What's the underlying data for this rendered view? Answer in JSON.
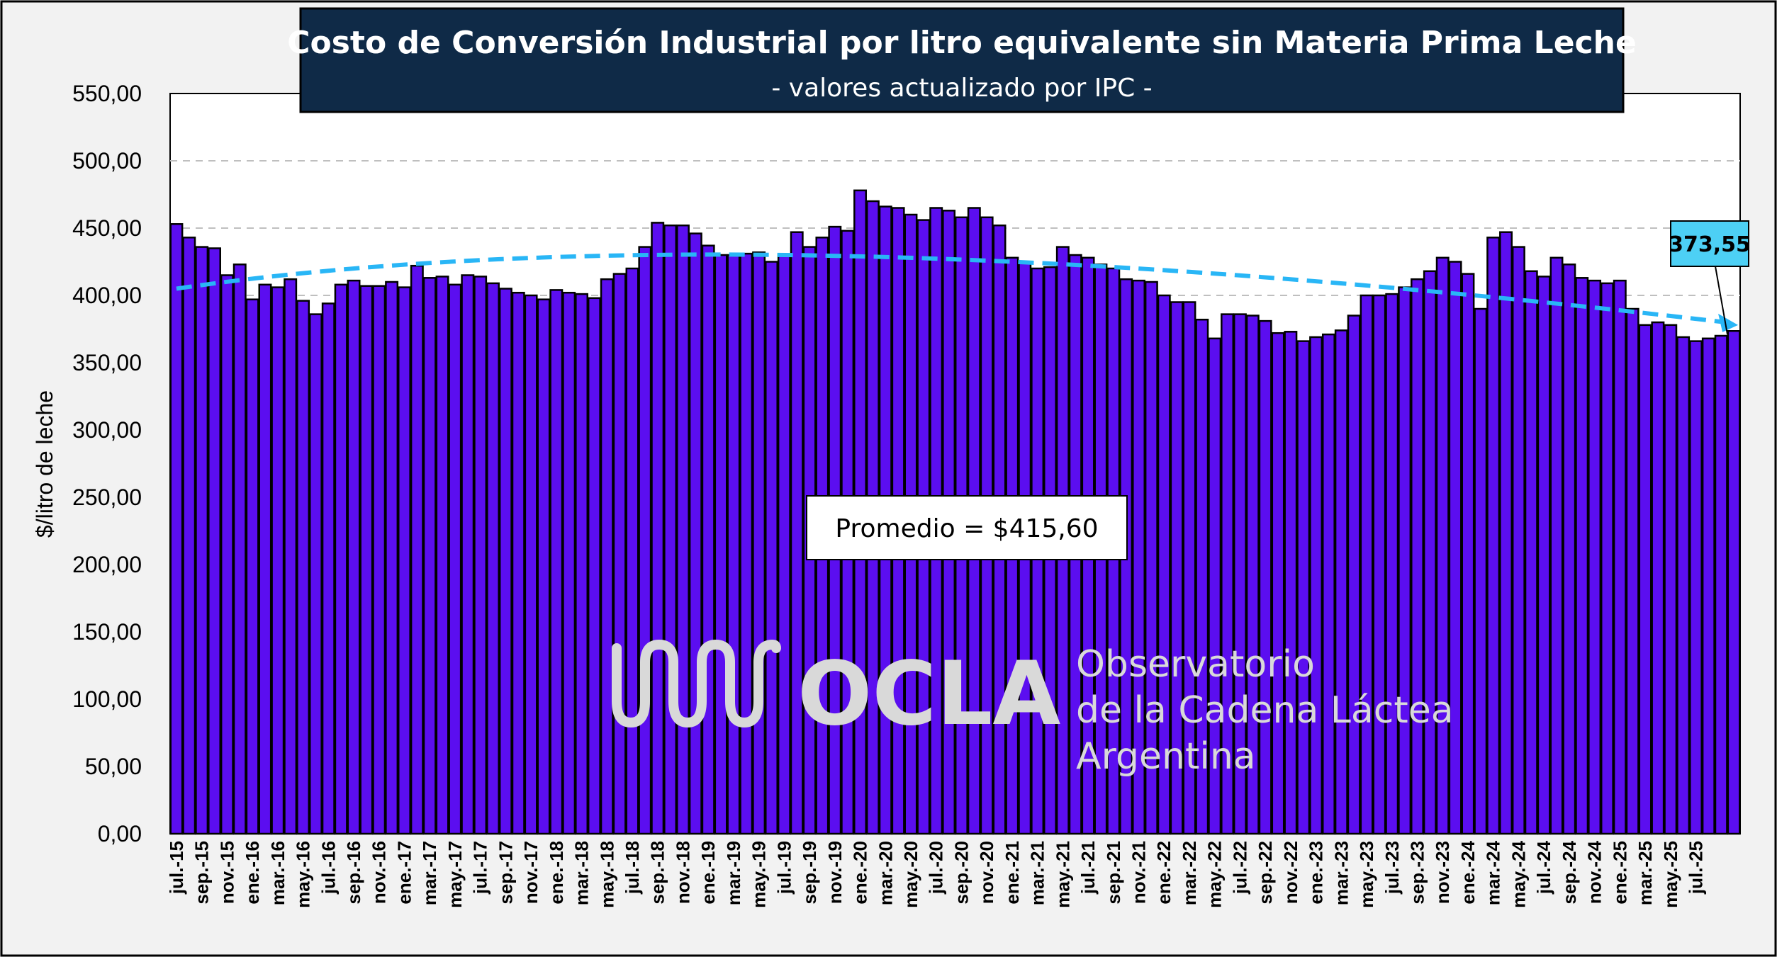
{
  "chart_data": {
    "type": "bar",
    "title": "Costo de Conversión Industrial por litro equivalente sin Materia Prima Leche",
    "subtitle": "- valores actualizado por IPC -",
    "xlabel": "",
    "ylabel": "$/litro de leche",
    "ylim": [
      0,
      550
    ],
    "y_ticks": [
      "0,00",
      "50,00",
      "100,00",
      "150,00",
      "200,00",
      "250,00",
      "300,00",
      "350,00",
      "400,00",
      "450,00",
      "500,00",
      "550,00"
    ],
    "grid": true,
    "x_tick_labels": [
      "jul.-15",
      "sep.-15",
      "nov.-15",
      "ene.-16",
      "mar.-16",
      "may.-16",
      "jul.-16",
      "sep.-16",
      "nov.-16",
      "ene.-17",
      "mar.-17",
      "may.-17",
      "jul.-17",
      "sep.-17",
      "nov.-17",
      "ene.-18",
      "mar.-18",
      "may.-18",
      "jul.-18",
      "sep.-18",
      "nov.-18",
      "ene.-19",
      "mar.-19",
      "may.-19",
      "jul.-19",
      "sep.-19",
      "nov.-19",
      "ene.-20",
      "mar.-20",
      "may.-20",
      "jul.-20",
      "sep.-20",
      "nov.-20",
      "ene.-21",
      "mar.-21",
      "may.-21",
      "jul.-21",
      "sep.-21",
      "nov.-21",
      "ene.-22",
      "mar.-22",
      "may.-22",
      "jul.-22",
      "sep.-22",
      "nov.-22",
      "ene.-23",
      "mar.-23",
      "may.-23",
      "jul.-23",
      "sep.-23",
      "nov.-23",
      "ene.-24",
      "mar.-24",
      "may.-24",
      "jul.-24",
      "sep.-24",
      "nov.-24",
      "ene.-25",
      "mar.-25",
      "may.-25",
      "jul.-25"
    ],
    "series": [
      {
        "values": [
          453,
          443,
          436,
          435,
          415,
          423,
          397,
          408,
          406,
          412,
          396,
          386,
          394,
          408,
          411,
          407,
          407,
          410,
          406,
          422,
          413,
          414,
          408,
          415,
          414,
          409,
          405,
          402,
          400,
          397,
          404,
          402,
          401,
          398,
          412,
          416,
          420,
          436,
          454,
          452,
          452,
          446,
          437,
          430,
          430,
          431,
          432,
          425,
          430,
          447,
          436,
          443,
          451,
          448,
          478,
          470,
          466,
          465,
          460,
          456,
          465,
          463,
          458,
          465,
          458,
          452,
          428,
          424,
          420,
          421,
          436,
          430,
          428,
          423,
          420,
          412,
          411,
          410,
          400,
          395,
          395,
          382,
          368,
          386,
          386,
          385,
          381,
          372,
          373,
          366,
          369,
          371,
          374,
          385,
          400,
          400,
          401,
          406,
          412,
          418,
          428,
          425,
          416,
          390,
          443,
          447,
          436,
          418,
          414,
          428,
          423,
          413,
          411,
          409,
          411,
          390,
          378,
          380,
          378,
          369,
          366,
          368,
          370,
          373.55
        ],
        "color": "#5b0ef0"
      }
    ],
    "trend_line": {
      "start_value": 405,
      "peak_value": 429,
      "end_value": 379,
      "color": "#29b6f6"
    },
    "average_annotation": "Promedio = $415,60",
    "last_value_label": "373,55",
    "last_label_color": "#4dd0f5"
  },
  "watermark": {
    "logo_text": "OCLA",
    "line1": "Observatorio",
    "line2": "de la Cadena Láctea",
    "line3": "Argentina"
  },
  "colors": {
    "title_bg": "#0f2a47",
    "bar_fill": "#5b0ef0",
    "bar_stroke": "#000000",
    "plot_bg": "#ffffff",
    "grid": "#bfbfbf"
  }
}
